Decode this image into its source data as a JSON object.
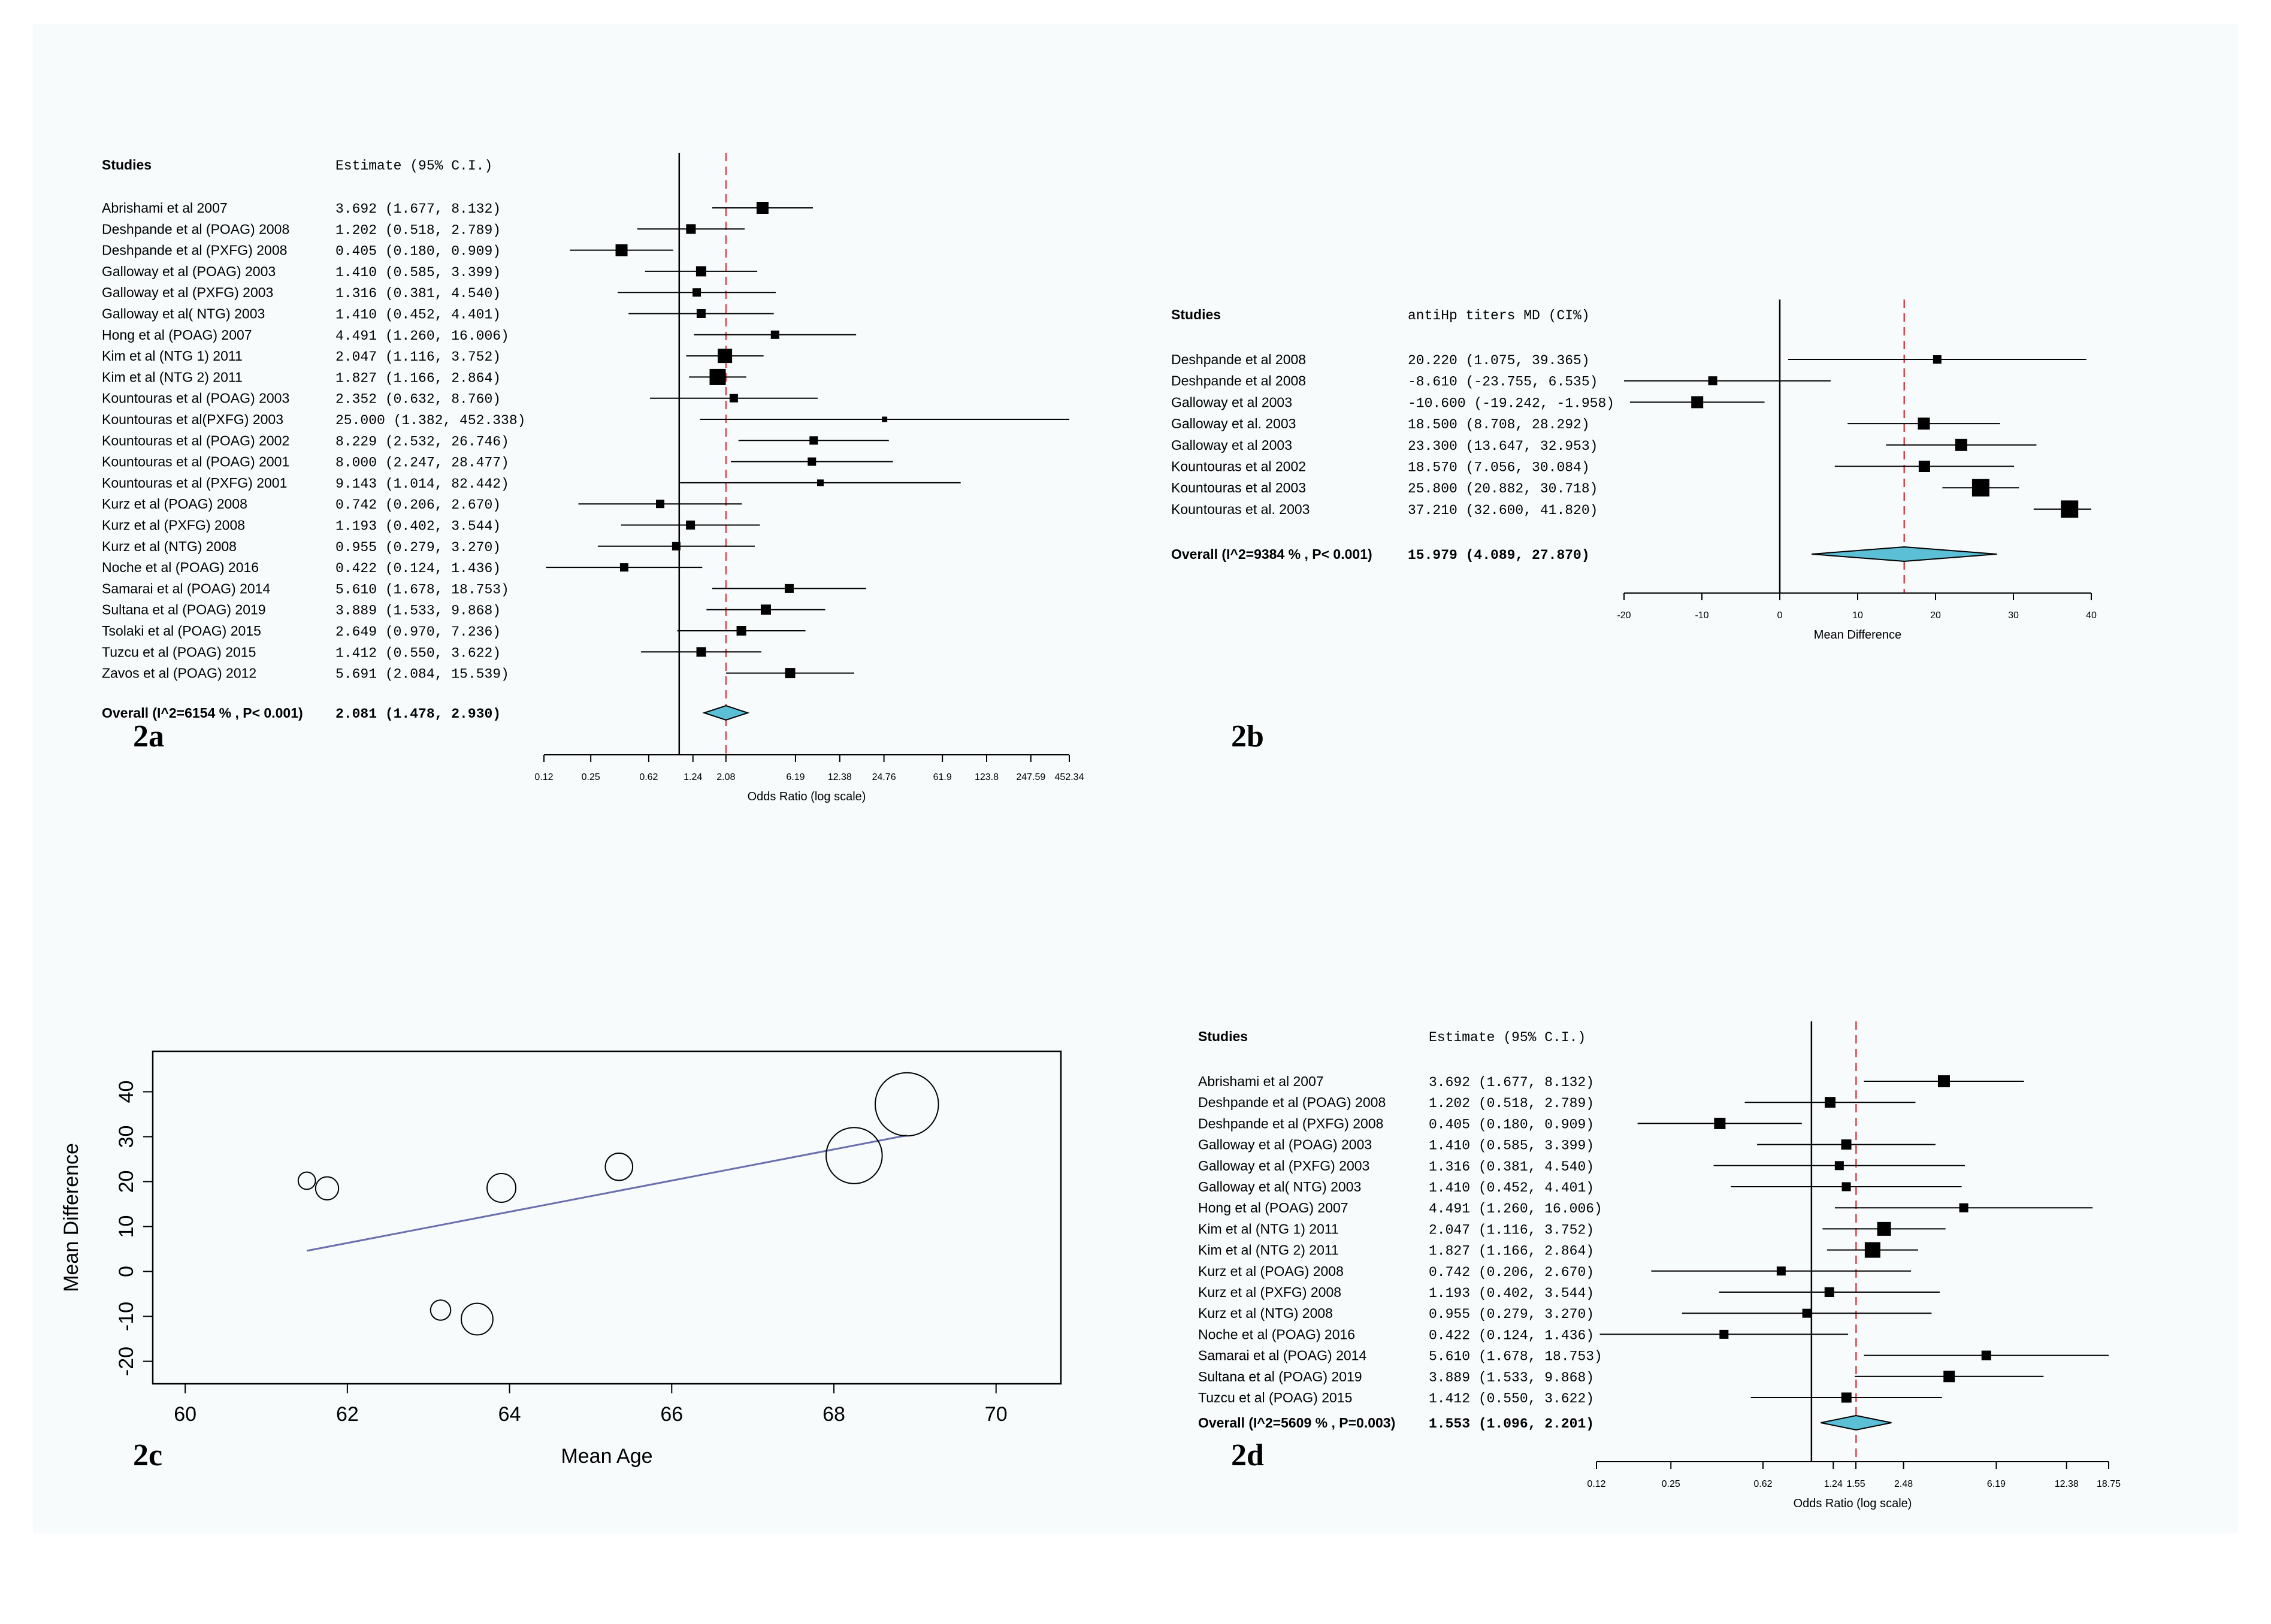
{
  "colors": {
    "background": "#f7fbfb",
    "ink": "#000000",
    "reference_line": "#e0434b",
    "diamond_fill": "#5bc0d6",
    "regression_line": "#6a6fae"
  },
  "chart_data": [
    {
      "panel": "2a",
      "type": "forest",
      "scale": "log",
      "studies_header": "Studies",
      "estimate_header": "Estimate (95% C.I.)",
      "xlabel": "Odds Ratio (log scale)",
      "xticks": [
        {
          "value": 0.12,
          "label": "0.12"
        },
        {
          "value": 0.25,
          "label": "0.25"
        },
        {
          "value": 0.62,
          "label": "0.62"
        },
        {
          "value": 1.24,
          "label": "1.24"
        },
        {
          "value": 2.08,
          "label": "2.08"
        },
        {
          "value": 6.19,
          "label": "6.19"
        },
        {
          "value": 12.38,
          "label": "12.38"
        },
        {
          "value": 24.76,
          "label": "24.76"
        },
        {
          "value": 61.9,
          "label": "61.9"
        },
        {
          "value": 123.8,
          "label": "123.8"
        },
        {
          "value": 247.59,
          "label": "247.59"
        },
        {
          "value": 452.34,
          "label": "452.34"
        }
      ],
      "xlim": [
        0.12,
        452.34
      ],
      "null_value": 1,
      "pooled_line": 2.081,
      "studies": [
        {
          "label": "Abrishami et al 2007",
          "est": 3.692,
          "lo": 1.677,
          "hi": 8.132,
          "text": "3.692 (1.677,   8.132)",
          "w": 1.0
        },
        {
          "label": "Deshpande et al (POAG) 2008",
          "est": 1.202,
          "lo": 0.518,
          "hi": 2.789,
          "text": "1.202 (0.518,   2.789)",
          "w": 0.8
        },
        {
          "label": "Deshpande et al (PXFG) 2008",
          "est": 0.405,
          "lo": 0.18,
          "hi": 0.909,
          "text": "0.405 (0.180,   0.909)",
          "w": 1.0
        },
        {
          "label": "Galloway et al (POAG) 2003",
          "est": 1.41,
          "lo": 0.585,
          "hi": 3.399,
          "text": "1.410 (0.585,   3.399)",
          "w": 0.85
        },
        {
          "label": "Galloway et al (PXFG) 2003",
          "est": 1.316,
          "lo": 0.381,
          "hi": 4.54,
          "text": "1.316 (0.381,   4.540)",
          "w": 0.7
        },
        {
          "label": "Galloway et al( NTG) 2003",
          "est": 1.41,
          "lo": 0.452,
          "hi": 4.401,
          "text": "1.410 (0.452,   4.401)",
          "w": 0.75
        },
        {
          "label": "Hong et al (POAG) 2007",
          "est": 4.491,
          "lo": 1.26,
          "hi": 16.006,
          "text": "4.491 (1.260,  16.006)",
          "w": 0.7
        },
        {
          "label": "Kim et al (NTG 1) 2011",
          "est": 2.047,
          "lo": 1.116,
          "hi": 3.752,
          "text": "2.047 (1.116,   3.752)",
          "w": 1.2
        },
        {
          "label": "Kim et al (NTG 2) 2011",
          "est": 1.827,
          "lo": 1.166,
          "hi": 2.864,
          "text": "1.827 (1.166,   2.864)",
          "w": 1.35
        },
        {
          "label": "Kountouras  et al (POAG) 2003",
          "est": 2.352,
          "lo": 0.632,
          "hi": 8.76,
          "text": "2.352 (0.632,   8.760)",
          "w": 0.7
        },
        {
          "label": "Kountouras et al(PXFG) 2003",
          "est": 25.0,
          "lo": 1.382,
          "hi": 452.338,
          "text": "25.000 (1.382, 452.338)",
          "w": 0.45
        },
        {
          "label": "Kountouras et  al (POAG) 2002",
          "est": 8.229,
          "lo": 2.532,
          "hi": 26.746,
          "text": "8.229 (2.532,  26.746)",
          "w": 0.7
        },
        {
          "label": "Kountouras et al (POAG) 2001",
          "est": 8.0,
          "lo": 2.247,
          "hi": 28.477,
          "text": "8.000 (2.247,  28.477)",
          "w": 0.7
        },
        {
          "label": "Kountouras et al (PXFG) 2001",
          "est": 9.143,
          "lo": 1.014,
          "hi": 82.442,
          "text": "9.143 (1.014,  82.442)",
          "w": 0.55
        },
        {
          "label": "Kurz et al (POAG) 2008",
          "est": 0.742,
          "lo": 0.206,
          "hi": 2.67,
          "text": "0.742 (0.206,   2.670)",
          "w": 0.7
        },
        {
          "label": "Kurz et al (PXFG) 2008",
          "est": 1.193,
          "lo": 0.402,
          "hi": 3.544,
          "text": "1.193 (0.402,   3.544)",
          "w": 0.75
        },
        {
          "label": "Kurz et al (NTG) 2008",
          "est": 0.955,
          "lo": 0.279,
          "hi": 3.27,
          "text": "0.955 (0.279,   3.270)",
          "w": 0.7
        },
        {
          "label": "Noche et al (POAG) 2016",
          "est": 0.422,
          "lo": 0.124,
          "hi": 1.436,
          "text": "0.422 (0.124,   1.436)",
          "w": 0.7
        },
        {
          "label": "Samarai et al (POAG) 2014",
          "est": 5.61,
          "lo": 1.678,
          "hi": 18.753,
          "text": "5.610 (1.678,  18.753)",
          "w": 0.75
        },
        {
          "label": "Sultana et al (POAG) 2019",
          "est": 3.889,
          "lo": 1.533,
          "hi": 9.868,
          "text": "3.889 (1.533,   9.868)",
          "w": 0.85
        },
        {
          "label": "Tsolaki et al (POAG) 2015",
          "est": 2.649,
          "lo": 0.97,
          "hi": 7.236,
          "text": "2.649 (0.970,   7.236)",
          "w": 0.8
        },
        {
          "label": "Tuzcu et al (POAG) 2015",
          "est": 1.412,
          "lo": 0.55,
          "hi": 3.622,
          "text": "1.412 (0.550,   3.622)",
          "w": 0.8
        },
        {
          "label": "Zavos et al (POAG) 2012",
          "est": 5.691,
          "lo": 2.084,
          "hi": 15.539,
          "text": "5.691 (2.084,  15.539)",
          "w": 0.85
        }
      ],
      "overall": {
        "label": "Overall (I^2=6154 % , P< 0.001)",
        "est": 2.081,
        "lo": 1.478,
        "hi": 2.93,
        "text": "2.081 (1.478,   2.930)"
      }
    },
    {
      "panel": "2b",
      "type": "forest",
      "scale": "linear",
      "studies_header": "Studies",
      "estimate_header": "antiHp titers MD (CI%)",
      "xlabel": "Mean Difference",
      "xticks": [
        {
          "value": -20,
          "label": "-20"
        },
        {
          "value": -10,
          "label": "-10"
        },
        {
          "value": 0,
          "label": "0"
        },
        {
          "value": 10,
          "label": "10"
        },
        {
          "value": 20,
          "label": "20"
        },
        {
          "value": 30,
          "label": "30"
        },
        {
          "value": 40,
          "label": "40"
        }
      ],
      "xlim": [
        -20,
        40
      ],
      "null_value": 0,
      "pooled_line": 15.979,
      "studies": [
        {
          "label": "Deshpande et al 2008",
          "est": 20.22,
          "lo": 1.075,
          "hi": 39.365,
          "text": "20.220    (1.075,  39.365)",
          "w": 0.7
        },
        {
          "label": "Deshpande et  al 2008",
          "est": -8.61,
          "lo": -23.755,
          "hi": 6.535,
          "text": "-8.610  (-23.755,   6.535)",
          "w": 0.75
        },
        {
          "label": "Galloway et al 2003",
          "est": -10.6,
          "lo": -19.242,
          "hi": -1.958,
          "text": "-10.600  (-19.242,  -1.958)",
          "w": 1.0
        },
        {
          "label": "Galloway et al. 2003",
          "est": 18.5,
          "lo": 8.708,
          "hi": 28.292,
          "text": "18.500    (8.708,  28.292)",
          "w": 1.0
        },
        {
          "label": "Galloway et  al 2003",
          "est": 23.3,
          "lo": 13.647,
          "hi": 32.953,
          "text": "23.300   (13.647,  32.953)",
          "w": 1.0
        },
        {
          "label": "Kountouras et al 2002",
          "est": 18.57,
          "lo": 7.056,
          "hi": 30.084,
          "text": "18.570    (7.056,  30.084)",
          "w": 0.95
        },
        {
          "label": "Kountouras  et al 2003",
          "est": 25.8,
          "lo": 20.882,
          "hi": 30.718,
          "text": "25.800   (20.882,  30.718)",
          "w": 1.45
        },
        {
          "label": "Kountouras et al. 2003",
          "est": 37.21,
          "lo": 32.6,
          "hi": 41.82,
          "text": "37.210   (32.600,  41.820)",
          "w": 1.45
        }
      ],
      "overall": {
        "label": "Overall (I^2=9384 % , P< 0.001)",
        "est": 15.979,
        "lo": 4.089,
        "hi": 27.87,
        "text": "15.979    (4.089,  27.870)"
      }
    },
    {
      "panel": "2c",
      "type": "scatter",
      "xlabel": "Mean Age",
      "ylabel": "Mean Difference",
      "xlim": [
        59.6,
        70.8
      ],
      "ylim": [
        -25,
        49
      ],
      "xticks": [
        60,
        62,
        64,
        66,
        68,
        70
      ],
      "yticks": [
        -20,
        -10,
        0,
        10,
        20,
        30,
        40
      ],
      "points": [
        {
          "x": 61.5,
          "y": 20.2,
          "r": 0.6
        },
        {
          "x": 61.75,
          "y": 18.5,
          "r": 0.8
        },
        {
          "x": 63.15,
          "y": -8.6,
          "r": 0.7
        },
        {
          "x": 63.6,
          "y": -10.6,
          "r": 1.1
        },
        {
          "x": 63.9,
          "y": 18.6,
          "r": 1.0
        },
        {
          "x": 65.35,
          "y": 23.3,
          "r": 0.95
        },
        {
          "x": 68.25,
          "y": 25.8,
          "r": 1.95
        },
        {
          "x": 68.9,
          "y": 37.2,
          "r": 2.2
        }
      ],
      "regression": {
        "x": [
          61.5,
          68.9
        ],
        "y": [
          4.6,
          30.3
        ]
      }
    },
    {
      "panel": "2d",
      "type": "forest",
      "scale": "log",
      "studies_header": "Studies",
      "estimate_header": "Estimate (95% C.I.)",
      "xlabel": "Odds Ratio (log scale)",
      "xticks": [
        {
          "value": 0.12,
          "label": "0.12"
        },
        {
          "value": 0.25,
          "label": "0.25"
        },
        {
          "value": 0.62,
          "label": "0.62"
        },
        {
          "value": 1.24,
          "label": "1.24"
        },
        {
          "value": 1.55,
          "label": "1.55"
        },
        {
          "value": 2.48,
          "label": "2.48"
        },
        {
          "value": 6.19,
          "label": "6.19"
        },
        {
          "value": 12.38,
          "label": "12.38"
        },
        {
          "value": 18.75,
          "label": "18.75"
        }
      ],
      "xlim": [
        0.12,
        18.75
      ],
      "null_value": 1,
      "pooled_line": 1.553,
      "studies": [
        {
          "label": "Abrishami et al 2007",
          "est": 3.692,
          "lo": 1.677,
          "hi": 8.132,
          "text": "3.692 (1.677,   8.132)",
          "w": 1.0
        },
        {
          "label": "Deshpande et al (POAG) 2008",
          "est": 1.202,
          "lo": 0.518,
          "hi": 2.789,
          "text": "1.202 (0.518,   2.789)",
          "w": 0.9
        },
        {
          "label": "Deshpande et al (PXFG) 2008",
          "est": 0.405,
          "lo": 0.18,
          "hi": 0.909,
          "text": "0.405 (0.180,   0.909)",
          "w": 0.95
        },
        {
          "label": "Galloway et al (POAG) 2003",
          "est": 1.41,
          "lo": 0.585,
          "hi": 3.399,
          "text": "1.410 (0.585,   3.399)",
          "w": 0.85
        },
        {
          "label": "Galloway et al (PXFG) 2003",
          "est": 1.316,
          "lo": 0.381,
          "hi": 4.54,
          "text": "1.316 (0.381,   4.540)",
          "w": 0.75
        },
        {
          "label": "Galloway et al( NTG) 2003",
          "est": 1.41,
          "lo": 0.452,
          "hi": 4.401,
          "text": "1.410 (0.452,   4.401)",
          "w": 0.75
        },
        {
          "label": "Hong et al (POAG) 2007",
          "est": 4.491,
          "lo": 1.26,
          "hi": 16.006,
          "text": "4.491 (1.260,  16.006)",
          "w": 0.75
        },
        {
          "label": "Kim et al (NTG 1) 2011",
          "est": 2.047,
          "lo": 1.116,
          "hi": 3.752,
          "text": "2.047 (1.116,   3.752)",
          "w": 1.15
        },
        {
          "label": "Kim et al (NTG 2) 2011",
          "est": 1.827,
          "lo": 1.166,
          "hi": 2.864,
          "text": "1.827 (1.166,   2.864)",
          "w": 1.3
        },
        {
          "label": "Kurz et al (POAG) 2008",
          "est": 0.742,
          "lo": 0.206,
          "hi": 2.67,
          "text": "0.742 (0.206,   2.670)",
          "w": 0.75
        },
        {
          "label": "Kurz et al (PXFG) 2008",
          "est": 1.193,
          "lo": 0.402,
          "hi": 3.544,
          "text": "1.193 (0.402,   3.544)",
          "w": 0.8
        },
        {
          "label": "Kurz et al (NTG) 2008",
          "est": 0.955,
          "lo": 0.279,
          "hi": 3.27,
          "text": "0.955 (0.279,   3.270)",
          "w": 0.75
        },
        {
          "label": "Noche et al (POAG) 2016",
          "est": 0.422,
          "lo": 0.124,
          "hi": 1.436,
          "text": "0.422 (0.124,   1.436)",
          "w": 0.75
        },
        {
          "label": "Samarai et al (POAG) 2014",
          "est": 5.61,
          "lo": 1.678,
          "hi": 18.753,
          "text": "5.610 (1.678,  18.753)",
          "w": 0.8
        },
        {
          "label": "Sultana et al (POAG) 2019",
          "est": 3.889,
          "lo": 1.533,
          "hi": 9.868,
          "text": "3.889 (1.533,   9.868)",
          "w": 0.95
        },
        {
          "label": "Tuzcu et al (POAG) 2015",
          "est": 1.412,
          "lo": 0.55,
          "hi": 3.622,
          "text": "1.412 (0.550,   3.622)",
          "w": 0.85
        }
      ],
      "overall": {
        "label": "Overall (I^2=5609 % , P=0.003)",
        "est": 1.553,
        "lo": 1.096,
        "hi": 2.201,
        "text": "1.553 (1.096,   2.201)"
      }
    }
  ]
}
